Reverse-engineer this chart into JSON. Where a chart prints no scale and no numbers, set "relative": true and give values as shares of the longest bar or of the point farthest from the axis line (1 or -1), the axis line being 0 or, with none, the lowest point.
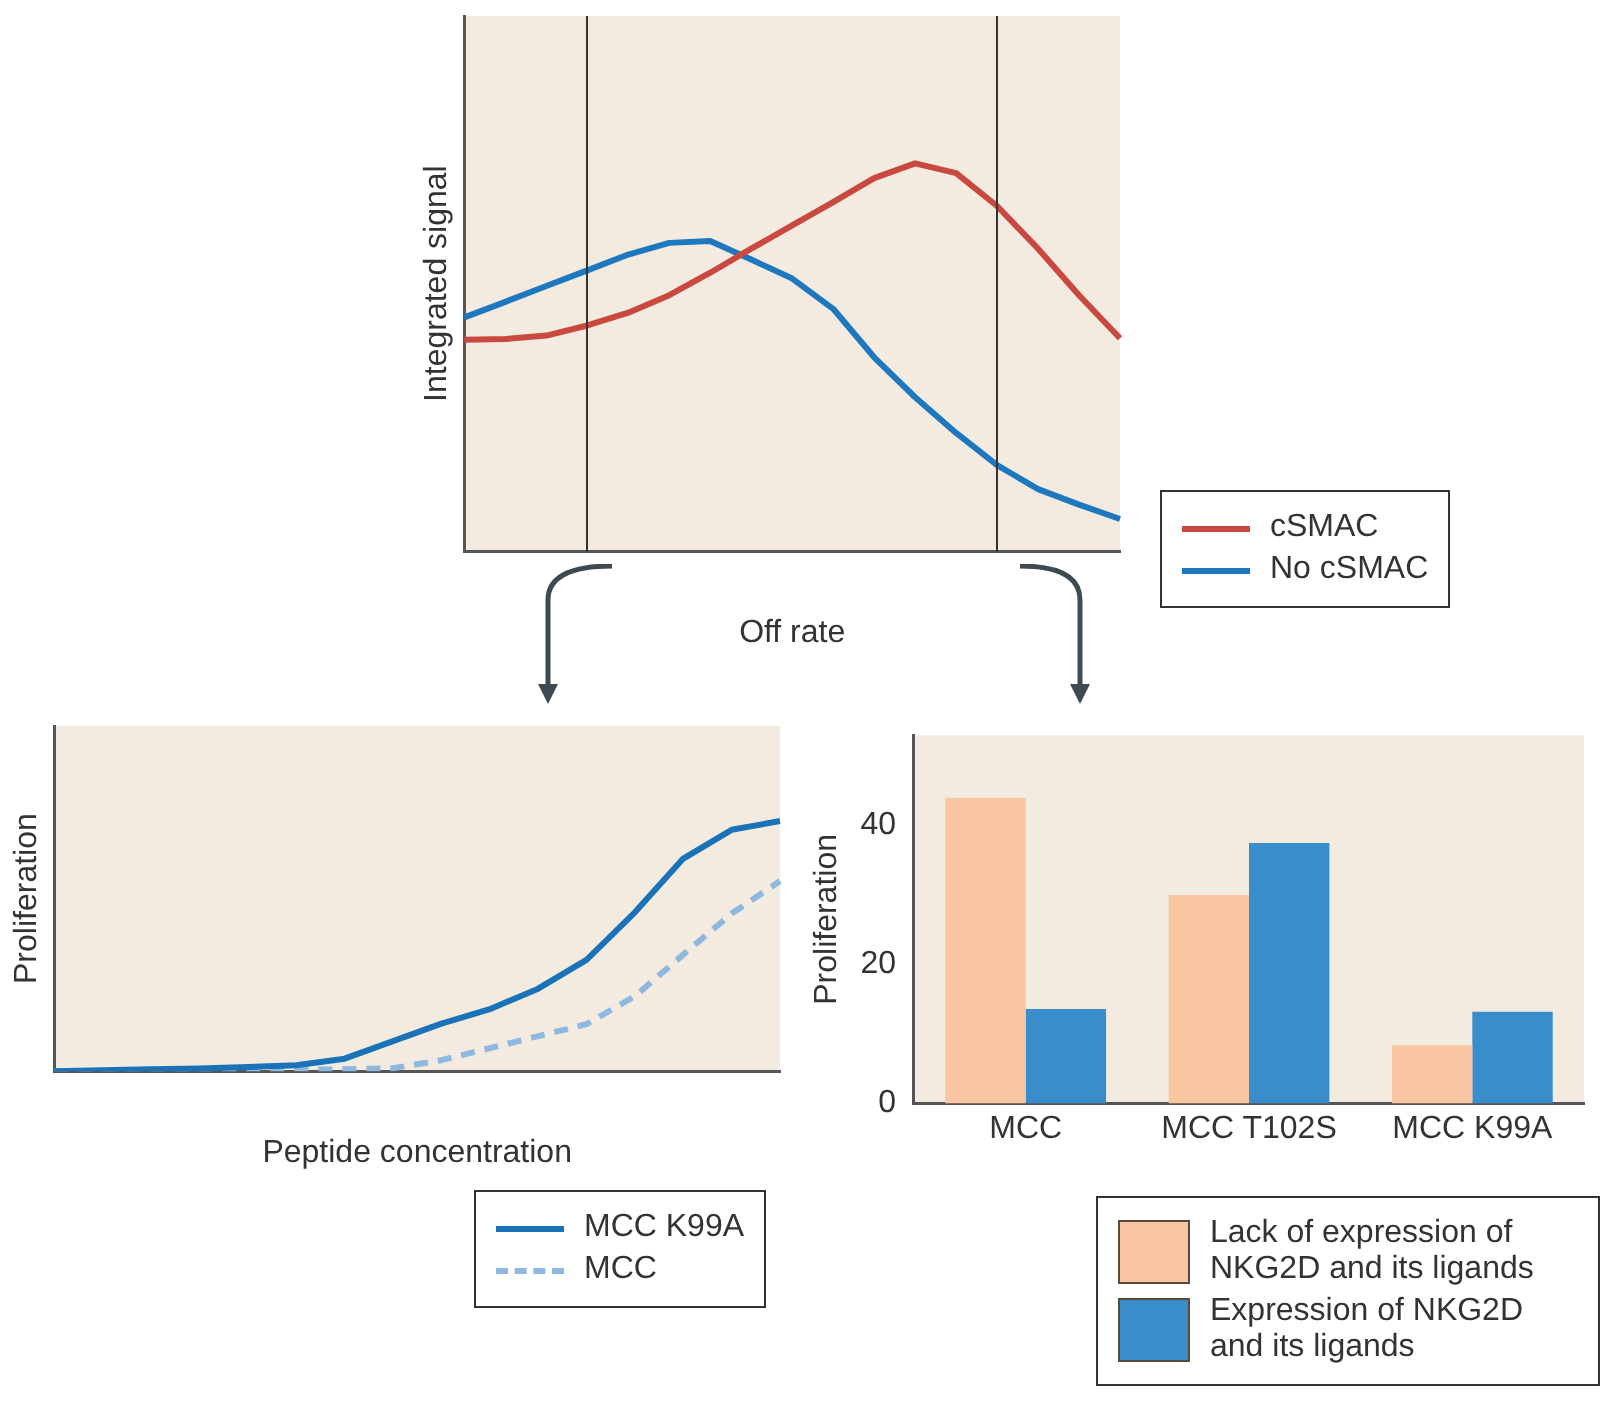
{
  "chart_data": [
    {
      "type": "line",
      "xlabel": "Off rate",
      "ylabel": "Integrated signal",
      "relative": true,
      "grid": false,
      "legend": "right",
      "categories": [
        null,
        null,
        null,
        null,
        null,
        null,
        null,
        null,
        null,
        null,
        null,
        null,
        null,
        null,
        null,
        null,
        null
      ],
      "series": [
        {
          "name": "cSMAC",
          "color": "#c9483f",
          "values": [
            0.545,
            0.547,
            0.556,
            0.582,
            0.615,
            0.66,
            0.718,
            0.78,
            0.84,
            0.9,
            0.962,
            1,
            0.975,
            0.89,
            0.78,
            0.66,
            0.549
          ]
        },
        {
          "name": "No cSMAC",
          "color": "#1e78be",
          "values": [
            0.603,
            0.643,
            0.684,
            0.724,
            0.765,
            0.795,
            0.8,
            0.752,
            0.703,
            0.625,
            0.5,
            0.397,
            0.305,
            0.222,
            0.16,
            0.12,
            0.083
          ]
        }
      ]
    },
    {
      "type": "line",
      "xlabel": "Peptide concentration",
      "ylabel": "Proliferation",
      "relative": true,
      "grid": false,
      "legend": "bottom right",
      "categories": [
        null,
        null,
        null,
        null,
        null,
        null,
        null,
        null,
        null,
        null,
        null,
        null,
        null,
        null,
        null,
        null
      ],
      "series": [
        {
          "name": "MCC K99A",
          "color": "#1a73b8",
          "line_style": "solid",
          "values": [
            0,
            0.004,
            0.008,
            0.011,
            0.017,
            0.024,
            0.05,
            0.12,
            0.19,
            0.248,
            0.33,
            0.445,
            0.635,
            0.85,
            0.965,
            1
          ]
        },
        {
          "name": "MCC",
          "color": "#8fb8e0",
          "line_style": "dashed",
          "values": [
            0,
            0.001,
            0.002,
            0.002,
            0.003,
            0.005,
            0.008,
            0.012,
            0.044,
            0.092,
            0.14,
            0.188,
            0.3,
            0.466,
            0.63,
            0.76
          ]
        }
      ]
    },
    {
      "type": "bar",
      "ylabel": "Proliferation",
      "categories": [
        "MCC",
        "MCC T102S",
        "MCC K99A"
      ],
      "ylim": [
        0,
        53
      ],
      "yticks": [
        0,
        20,
        40
      ],
      "grid": false,
      "legend": "bottom right",
      "series": [
        {
          "name": "Lack of expression of NKG2D and its ligands",
          "color": "#f8c6a0",
          "values": [
            44,
            30,
            8.4
          ]
        },
        {
          "name": "Expression of NKG2D and its ligands",
          "color": "#3a8dcb",
          "values": [
            13.6,
            37.5,
            13.2
          ]
        }
      ]
    }
  ]
}
